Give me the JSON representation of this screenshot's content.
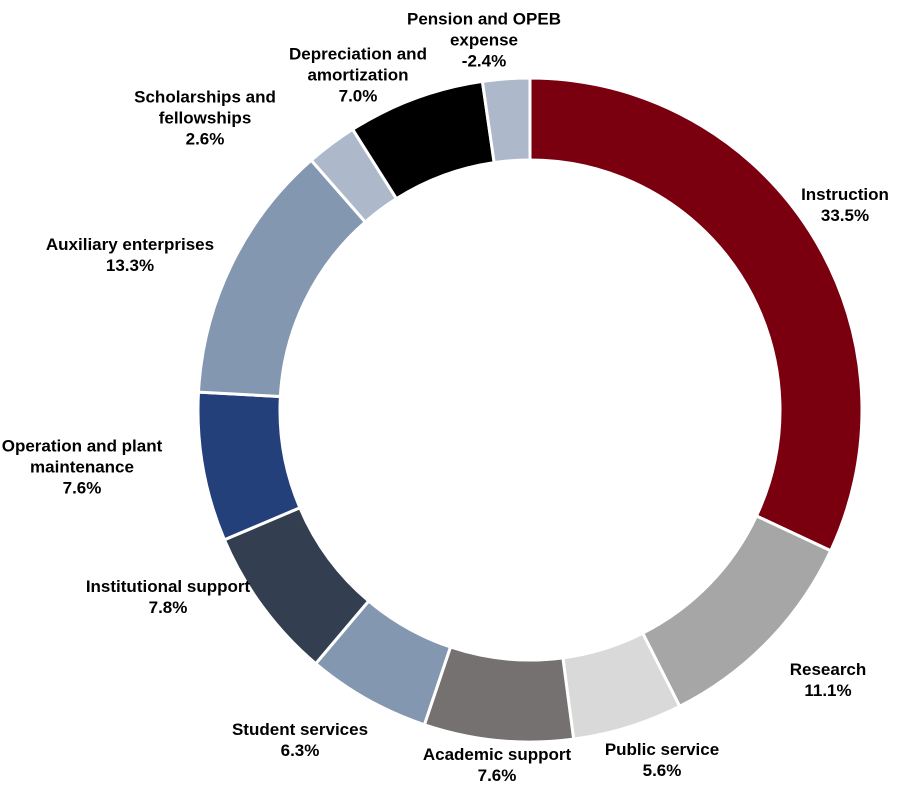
{
  "chart_data": {
    "type": "donut",
    "categories": [
      "Instruction",
      "Research",
      "Public service",
      "Academic support",
      "Student services",
      "Institutional support",
      "Operation and plant maintenance",
      "Auxiliary enterprises",
      "Scholarships and fellowships",
      "Depreciation and amortization",
      "Pension and OPEB expense"
    ],
    "values": [
      33.5,
      11.1,
      5.6,
      7.6,
      6.3,
      7.8,
      7.6,
      13.3,
      2.6,
      7.0,
      -2.4
    ],
    "value_labels": [
      "33.5%",
      "11.1%",
      "5.6%",
      "7.6%",
      "6.3%",
      "7.8%",
      "7.6%",
      "13.3%",
      "2.6%",
      "7.0%",
      "-2.4%"
    ],
    "colors": [
      "#7a0010",
      "#a6a6a6",
      "#d9d9d9",
      "#767171",
      "#8497b0",
      "#333f50",
      "#23407a",
      "#8497b0",
      "#adb9ca",
      "#000000",
      "#adb9ca"
    ]
  }
}
